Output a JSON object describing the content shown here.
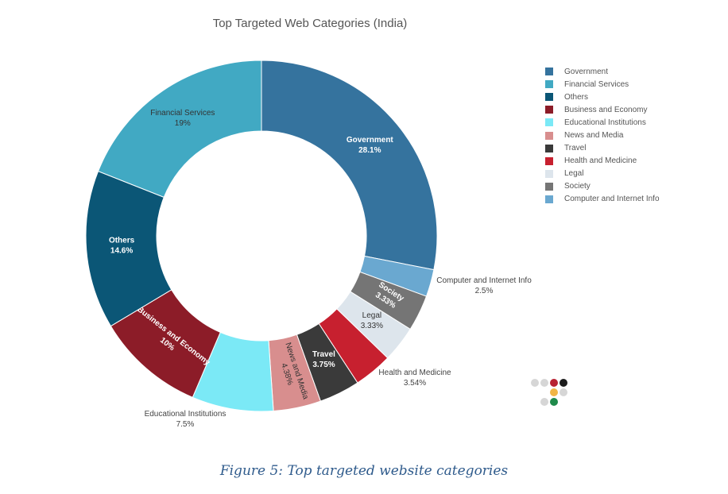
{
  "chart_data": {
    "type": "pie",
    "subtype": "donut",
    "title": "Top Targeted Web Categories (India)",
    "legend_position": "right",
    "slices": [
      {
        "label": "Government",
        "value": 28.1,
        "value_text": "28.1%",
        "color": "#35739e"
      },
      {
        "label": "Computer and Internet Info",
        "value": 2.5,
        "value_text": "2.5%",
        "color": "#6aa8d0"
      },
      {
        "label": "Society",
        "value": 3.33,
        "value_text": "3.33%",
        "color": "#757575"
      },
      {
        "label": "Legal",
        "value": 3.33,
        "value_text": "3.33%",
        "color": "#dde5ec"
      },
      {
        "label": "Health and Medicine",
        "value": 3.54,
        "value_text": "3.54%",
        "color": "#c7202f"
      },
      {
        "label": "Travel",
        "value": 3.75,
        "value_text": "3.75%",
        "color": "#3a3a3a"
      },
      {
        "label": "News and Media",
        "value": 4.38,
        "value_text": "4.38%",
        "color": "#d88e8e"
      },
      {
        "label": "Educational Institutions",
        "value": 7.5,
        "value_text": "7.5%",
        "color": "#7be9f6"
      },
      {
        "label": "Business and Economy",
        "value": 10,
        "value_text": "10%",
        "color": "#8c1c28"
      },
      {
        "label": "Others",
        "value": 14.6,
        "value_text": "14.6%",
        "color": "#0b5676"
      },
      {
        "label": "Financial Services",
        "value": 19,
        "value_text": "19%",
        "color": "#41a9c3"
      }
    ],
    "legend_order": [
      "Government",
      "Financial Services",
      "Others",
      "Business and Economy",
      "Educational Institutions",
      "News and Media",
      "Travel",
      "Health and Medicine",
      "Legal",
      "Society",
      "Computer and Internet Info"
    ]
  },
  "caption": "Figure 5: Top targeted website categories",
  "logo_dot_colors": [
    "#d6d6d6",
    "#d6d6d6",
    "#b82232",
    "#1c1c1c",
    "#f1b545",
    "#d6d6d6",
    "#d6d6d6",
    "#1f8a4b"
  ]
}
